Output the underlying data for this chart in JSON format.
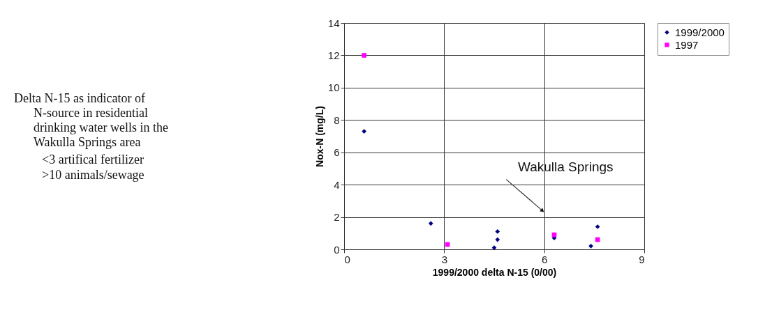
{
  "chart_data": {
    "type": "scatter",
    "xlabel": "1999/2000 delta N-15 (0/00)",
    "ylabel": "Nox-N (mg/L)",
    "xlim": [
      0,
      9
    ],
    "xticks": [
      0,
      3,
      6,
      9
    ],
    "ylim": [
      0,
      14
    ],
    "yticks": [
      0,
      2,
      4,
      6,
      8,
      10,
      12,
      14
    ],
    "grid": true,
    "legend": "right",
    "series": [
      {
        "name": "1999/2000",
        "color": "#000080",
        "marker": "diamond",
        "x": [
          0.6,
          2.6,
          4.6,
          4.6,
          4.5,
          6.3,
          7.4,
          7.6
        ],
        "values": [
          7.3,
          1.6,
          1.1,
          0.6,
          0.1,
          0.7,
          0.2,
          1.4
        ]
      },
      {
        "name": "1997",
        "color": "#ff00ff",
        "marker": "square",
        "x": [
          0.6,
          3.1,
          6.3,
          7.6
        ],
        "values": [
          12.0,
          0.3,
          0.9,
          0.6
        ]
      }
    ],
    "annotations": [
      "Wakulla Springs",
      "Delta N-15 as indicator of N-source in residential drinking water wells in the Wakulla Springs area",
      "<3 artifical fertilizer",
      ">10 animals/sewage"
    ]
  }
}
